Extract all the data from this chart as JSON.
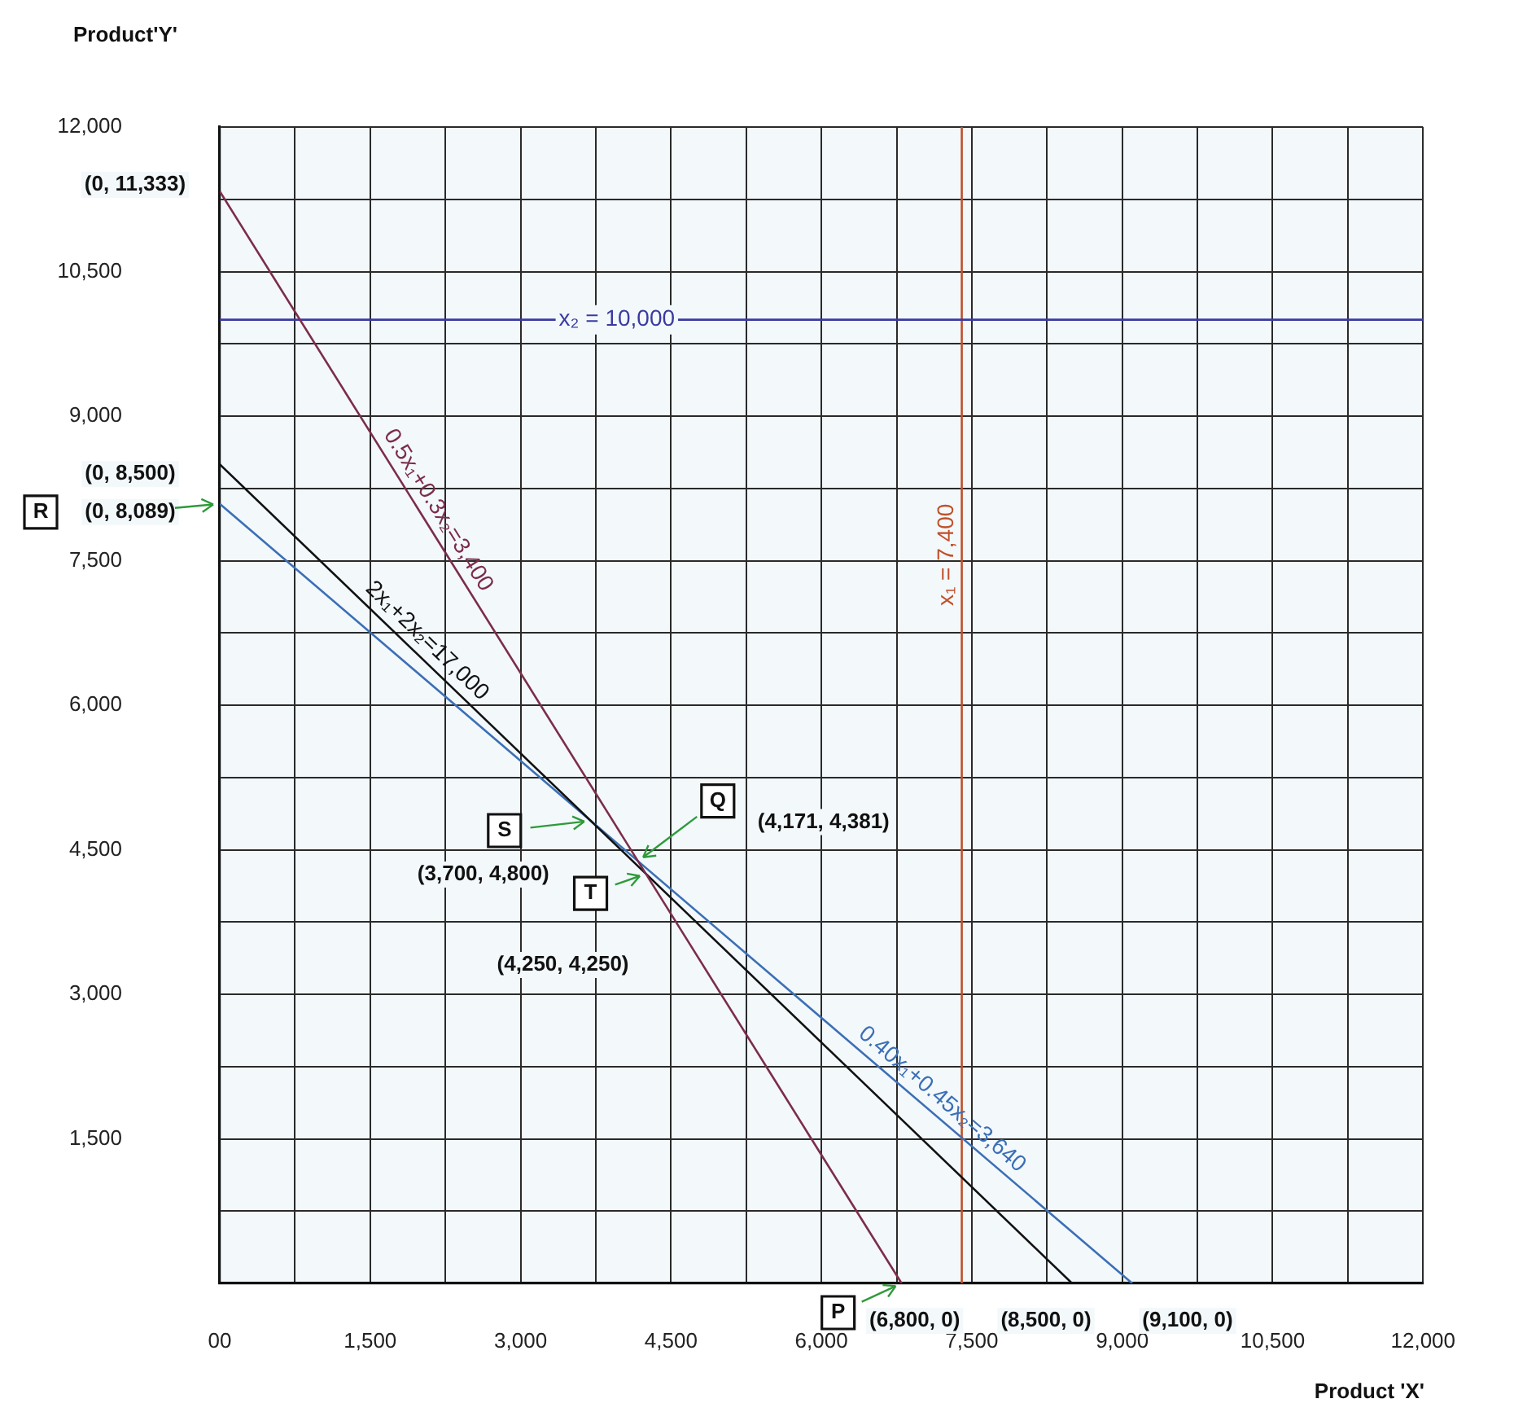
{
  "chart_data": {
    "type": "line",
    "xlabel": "Product 'X'",
    "ylabel": "Product'Y'",
    "xlim": [
      0,
      12000
    ],
    "ylim": [
      0,
      12000
    ],
    "xticks": [
      {
        "value": 0,
        "label": "00"
      },
      {
        "value": 750,
        "label": null
      },
      {
        "value": 1500,
        "label": "1,500"
      },
      {
        "value": 2250,
        "label": null
      },
      {
        "value": 3000,
        "label": "3,000"
      },
      {
        "value": 3750,
        "label": null
      },
      {
        "value": 4500,
        "label": "4,500"
      },
      {
        "value": 5250,
        "label": null
      },
      {
        "value": 6000,
        "label": "6,000"
      },
      {
        "value": 6750,
        "label": null
      },
      {
        "value": 7500,
        "label": "7,500"
      },
      {
        "value": 8250,
        "label": null
      },
      {
        "value": 9000,
        "label": "9,000"
      },
      {
        "value": 9750,
        "label": null
      },
      {
        "value": 10500,
        "label": "10,500"
      },
      {
        "value": 11250,
        "label": null
      },
      {
        "value": 12000,
        "label": "12,000"
      }
    ],
    "yticks": [
      {
        "value": 0,
        "label": null
      },
      {
        "value": 750,
        "label": null
      },
      {
        "value": 1500,
        "label": "1,500"
      },
      {
        "value": 2250,
        "label": null
      },
      {
        "value": 3000,
        "label": "3,000"
      },
      {
        "value": 3750,
        "label": null
      },
      {
        "value": 4500,
        "label": "4,500"
      },
      {
        "value": 5250,
        "label": null
      },
      {
        "value": 6000,
        "label": "6,000"
      },
      {
        "value": 6750,
        "label": null
      },
      {
        "value": 7500,
        "label": "7,500"
      },
      {
        "value": 8250,
        "label": null
      },
      {
        "value": 9000,
        "label": "9,000"
      },
      {
        "value": 9750,
        "label": null
      },
      {
        "value": 10500,
        "label": "10,500"
      },
      {
        "value": 11250,
        "label": null
      },
      {
        "value": 12000,
        "label": "12,000"
      }
    ],
    "grid": true,
    "legend": false,
    "marker": "none",
    "line_style": "solid",
    "series": [
      {
        "name": "0.5x₁+0.3x₂=3,400",
        "color": "#7b2d4a",
        "x": [
          0,
          6800
        ],
        "values": [
          11333,
          0
        ]
      },
      {
        "name": "2x₁+2x₂=17,000",
        "color": "#111111",
        "x": [
          0,
          8500
        ],
        "values": [
          8500,
          0
        ]
      },
      {
        "name": "0.40x₁+0.45x₂=3,640",
        "color": "#3b6fb6",
        "x": [
          0,
          9100
        ],
        "values": [
          8089,
          0
        ]
      },
      {
        "name": "x₂ = 10,000",
        "color": "#3a3aa0",
        "x": [
          0,
          12000
        ],
        "values": [
          10000,
          10000
        ]
      },
      {
        "name": "x₁ = 7,400",
        "color": "#c0502a",
        "x": [
          7400,
          7400
        ],
        "values": [
          0,
          12000
        ]
      }
    ],
    "annotations": [
      {
        "text": "(0, 11,333)",
        "x": 0,
        "y": 11333
      },
      {
        "text": "(0, 8,500)",
        "x": 0,
        "y": 8500
      },
      "R",
      {
        "text": "(0, 8,089)",
        "x": 0,
        "y": 8089
      },
      {
        "text": "S",
        "x": 3700,
        "y": 4800
      },
      {
        "text": "(3,700, 4,800)",
        "x": 3700,
        "y": 4800
      },
      {
        "text": "Q",
        "x": 4171,
        "y": 4381
      },
      "(4,171, 4,381)",
      {
        "text": "T",
        "x": 4250,
        "y": 4250
      },
      "(4,250, 4,250)",
      {
        "text": "P",
        "x": 6800,
        "y": 0
      },
      {
        "text": "(6,800, 0)",
        "x": 6800,
        "y": 0
      },
      {
        "text": "(8,500, 0)",
        "x": 8500,
        "y": 0
      },
      {
        "text": "(9,100, 0)",
        "x": 9100,
        "y": 0
      }
    ]
  }
}
